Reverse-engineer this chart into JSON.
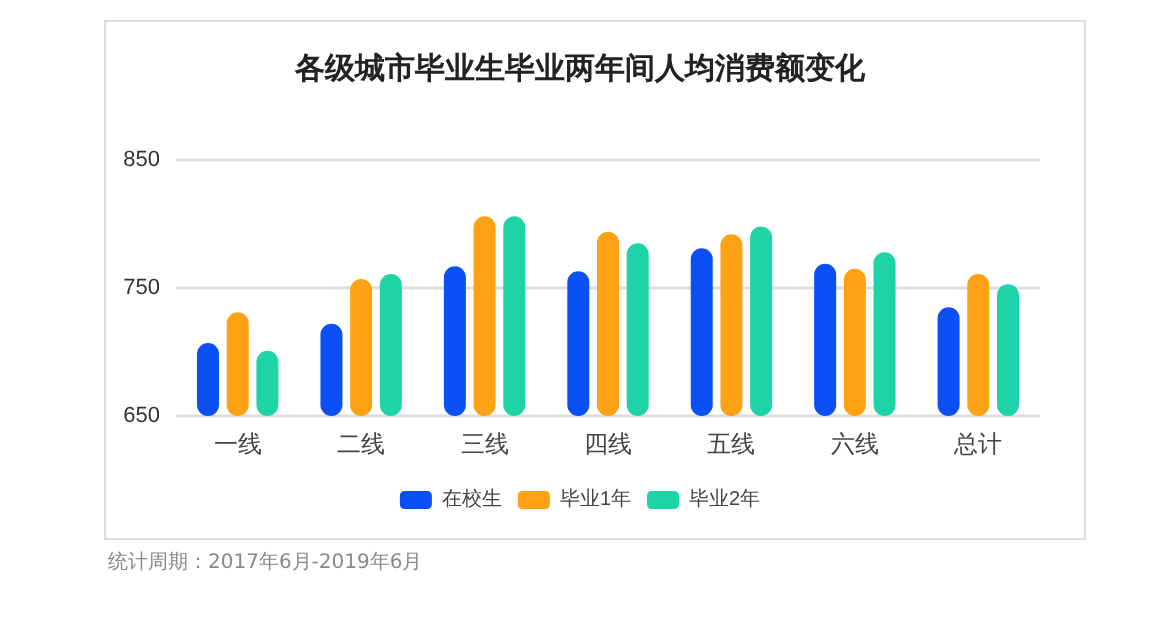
{
  "chart_data": {
    "type": "bar",
    "title": "各级城市毕业生毕业两年间人均消费额变化",
    "categories": [
      "一线",
      "二线",
      "三线",
      "四线",
      "五线",
      "六线",
      "总计"
    ],
    "series": [
      {
        "name": "在校生",
        "color": "#0a50f5",
        "values": [
          707,
          722,
          767,
          763,
          781,
          769,
          735
        ]
      },
      {
        "name": "毕业1年",
        "color": "#fda214",
        "values": [
          731,
          757,
          806,
          794,
          792,
          765,
          761
        ]
      },
      {
        "name": "毕业2年",
        "color": "#1fd3a8",
        "values": [
          701,
          761,
          806,
          785,
          798,
          778,
          753
        ]
      }
    ],
    "ylim": [
      650,
      850
    ],
    "yticks": [
      650,
      750,
      850
    ],
    "grid": "y",
    "legend": "bottom",
    "annotations": [
      "统计周期：2017年6月-2019年6月"
    ]
  }
}
